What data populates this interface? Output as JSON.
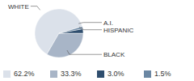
{
  "chart_data": {
    "type": "pie",
    "categories": [
      "WHITE",
      "BLACK",
      "HISPANIC",
      "A.I."
    ],
    "values": [
      62.2,
      33.3,
      3.0,
      1.5
    ],
    "value_labels": [
      "62.2%",
      "33.3%",
      "3.0%",
      "1.5%"
    ],
    "colors": [
      "#dbe1ea",
      "#a8b5c7",
      "#2f4e6e",
      "#6b87a3"
    ]
  }
}
